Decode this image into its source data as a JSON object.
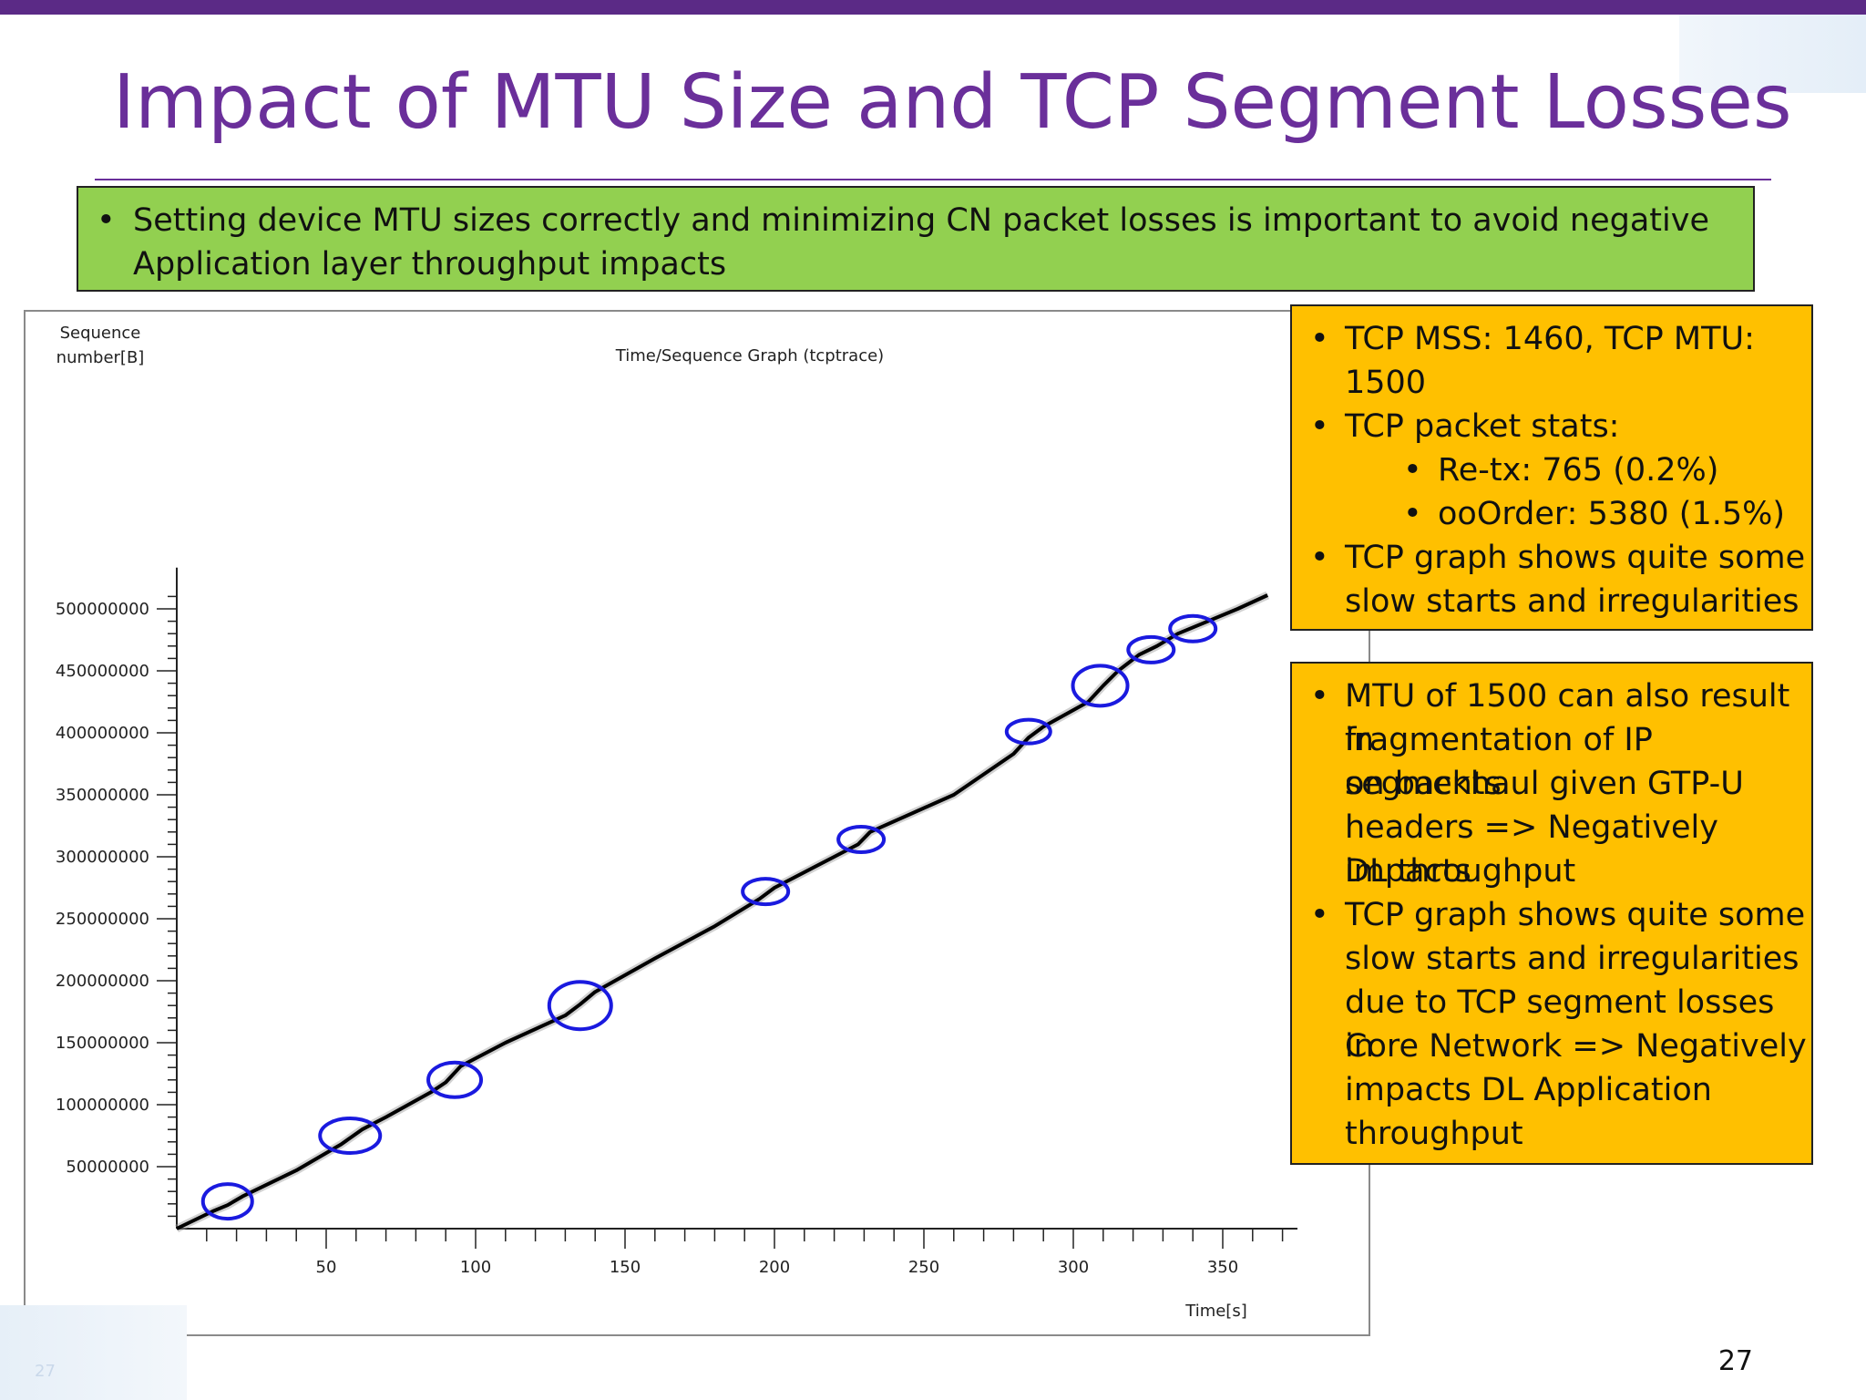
{
  "slide": {
    "title": "Impact of MTU Size and TCP Segment Losses",
    "page_number": "27",
    "corner_page_number": "27"
  },
  "green_box": {
    "bullet": "Setting device MTU sizes correctly and minimizing CN packet losses is important to avoid negative Application layer throughput impacts"
  },
  "orange_box_1": {
    "item1": "TCP MSS: 1460, TCP MTU:",
    "item1_cont": "1500",
    "item2": "TCP packet stats:",
    "sub1": "Re-tx: 765 (0.2%)",
    "sub2": "ooOrder: 5380 (1.5%)",
    "item3": "TCP graph shows quite some",
    "item3_cont": "slow starts and irregularities"
  },
  "orange_box_2": {
    "lines": [
      "MTU of 1500 can also result in",
      "fragmentation of IP segments",
      "on backhaul given GTP-U",
      "headers => Negatively impacts",
      "DL throughput",
      "TCP graph shows quite some",
      "slow starts and irregularities",
      "due to TCP segment losses in",
      "Core Network => Negatively",
      "impacts DL Application",
      "throughput"
    ],
    "bullet_line_indexes": [
      0,
      5
    ]
  },
  "bullet_glyph": "•",
  "colors": {
    "title_purple": "#6a2f9a",
    "green_box": "#92d050",
    "orange_box": "#ffc000",
    "circle_blue": "#1a1adf",
    "line_black": "#000000"
  },
  "chart_data": {
    "type": "line",
    "title": "Time/Sequence Graph (tcptrace)",
    "xlabel": "Time[s]",
    "ylabel_line1": "Sequence",
    "ylabel_line2": "number[B]",
    "xlim": [
      0,
      375
    ],
    "ylim": [
      0,
      520000000
    ],
    "x_ticks": [
      50,
      100,
      150,
      200,
      250,
      300,
      350
    ],
    "y_ticks": [
      50000000,
      100000000,
      150000000,
      200000000,
      250000000,
      300000000,
      350000000,
      400000000,
      450000000,
      500000000
    ],
    "x_tick_labels": [
      "50",
      "100",
      "150",
      "200",
      "250",
      "300",
      "350"
    ],
    "y_tick_labels": [
      "50000000",
      "100000000",
      "150000000",
      "200000000",
      "250000000",
      "300000000",
      "350000000",
      "400000000",
      "450000000",
      "500000000"
    ],
    "series": [
      {
        "x": [
          0,
          12,
          17,
          22,
          40,
          55,
          62,
          70,
          85,
          90,
          95,
          110,
          130,
          135,
          140,
          160,
          180,
          195,
          200,
          220,
          228,
          232,
          260,
          280,
          285,
          290,
          305,
          310,
          315,
          322,
          328,
          335,
          342,
          355,
          365
        ],
        "y": [
          0,
          14000000,
          19000000,
          26000000,
          47000000,
          68000000,
          80000000,
          90000000,
          110000000,
          118000000,
          131000000,
          150000000,
          172000000,
          181000000,
          191000000,
          218000000,
          244000000,
          266000000,
          275000000,
          300000000,
          310000000,
          320000000,
          350000000,
          383000000,
          396000000,
          405000000,
          425000000,
          438000000,
          450000000,
          463000000,
          470000000,
          480000000,
          487000000,
          500000000,
          511000000
        ]
      }
    ],
    "annotations": [
      {
        "shape": "circle",
        "x": 17,
        "y": 22000000
      },
      {
        "shape": "circle",
        "x": 58,
        "y": 75000000
      },
      {
        "shape": "circle",
        "x": 93,
        "y": 120000000
      },
      {
        "shape": "circle",
        "x": 135,
        "y": 180000000
      },
      {
        "shape": "circle",
        "x": 197,
        "y": 272000000
      },
      {
        "shape": "circle",
        "x": 229,
        "y": 314000000
      },
      {
        "shape": "circle",
        "x": 285,
        "y": 401000000
      },
      {
        "shape": "circle",
        "x": 309,
        "y": 438000000
      },
      {
        "shape": "circle",
        "x": 326,
        "y": 467000000
      },
      {
        "shape": "circle",
        "x": 340,
        "y": 484000000
      }
    ]
  }
}
